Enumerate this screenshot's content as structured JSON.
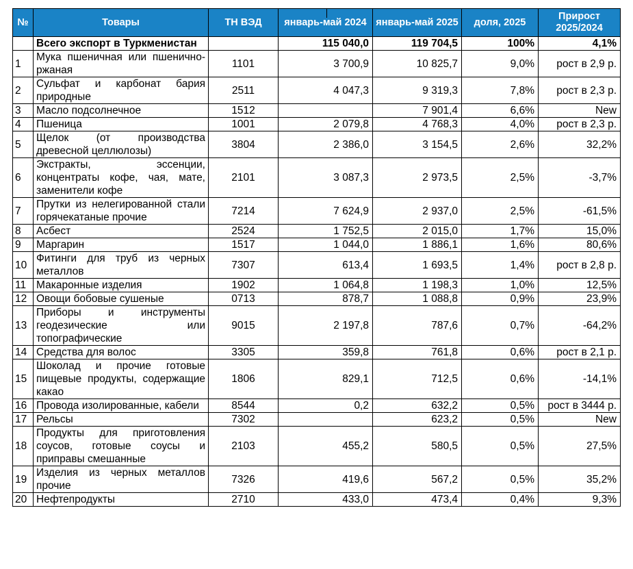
{
  "headers": {
    "num": "№",
    "goods": "Товары",
    "code": "ТН ВЭД",
    "y2024": "январь-май 2024",
    "y2025": "январь-май 2025",
    "share": "доля, 2025",
    "growth": "Прирост 2025/2024"
  },
  "total": {
    "name": "Всего экспорт в Туркменистан",
    "code": "",
    "y2024": "115 040,0",
    "y2025": "119 704,5",
    "share": "100%",
    "growth": "4,1%"
  },
  "rows": [
    {
      "num": "1",
      "name": "Мука пшеничная или пшенично-ржаная",
      "code": "1101",
      "y2024": "3 700,9",
      "y2025": "10 825,7",
      "share": "9,0%",
      "growth": "рост в 2,9 р."
    },
    {
      "num": "2",
      "name": "Сульфат и карбонат бария природные",
      "code": "2511",
      "y2024": "4 047,3",
      "y2025": "9 319,3",
      "share": "7,8%",
      "growth": "рост в 2,3 р."
    },
    {
      "num": "3",
      "name": "Масло подсолнечное",
      "code": "1512",
      "y2024": "",
      "y2025": "7 901,4",
      "share": "6,6%",
      "growth": "New"
    },
    {
      "num": "4",
      "name": "Пшеница",
      "code": "1001",
      "y2024": "2 079,8",
      "y2025": "4 768,3",
      "share": "4,0%",
      "growth": "рост в 2,3 р."
    },
    {
      "num": "5",
      "name": "Щелок (от производства древесной целлюлозы)",
      "code": "3804",
      "y2024": "2 386,0",
      "y2025": "3 154,5",
      "share": "2,6%",
      "growth": "32,2%"
    },
    {
      "num": "6",
      "name": "Экстракты, эссенции, концентраты кофе, чая, мате, заменители кофе",
      "code": "2101",
      "y2024": "3 087,3",
      "y2025": "2 973,5",
      "share": "2,5%",
      "growth": "-3,7%"
    },
    {
      "num": "7",
      "name": "Прутки из нелегированной стали горячекатаные прочие",
      "code": "7214",
      "y2024": "7 624,9",
      "y2025": "2 937,0",
      "share": "2,5%",
      "growth": "-61,5%"
    },
    {
      "num": "8",
      "name": "Асбест",
      "code": "2524",
      "y2024": "1 752,5",
      "y2025": "2 015,0",
      "share": "1,7%",
      "growth": "15,0%"
    },
    {
      "num": "9",
      "name": "Маргарин",
      "code": "1517",
      "y2024": "1 044,0",
      "y2025": "1 886,1",
      "share": "1,6%",
      "growth": "80,6%"
    },
    {
      "num": "10",
      "name": "Фитинги для труб из черных металлов",
      "code": "7307",
      "y2024": "613,4",
      "y2025": "1 693,5",
      "share": "1,4%",
      "growth": "рост в 2,8 р."
    },
    {
      "num": "11",
      "name": "Макаронные изделия",
      "code": "1902",
      "y2024": "1 064,8",
      "y2025": "1 198,3",
      "share": "1,0%",
      "growth": "12,5%"
    },
    {
      "num": "12",
      "name": "Овощи бобовые сушеные",
      "code": "0713",
      "y2024": "878,7",
      "y2025": "1 088,8",
      "share": "0,9%",
      "growth": "23,9%"
    },
    {
      "num": "13",
      "name": "Приборы и инструменты геодезические или топографические",
      "code": "9015",
      "y2024": "2 197,8",
      "y2025": "787,6",
      "share": "0,7%",
      "growth": "-64,2%"
    },
    {
      "num": "14",
      "name": "Средства для волос",
      "code": "3305",
      "y2024": "359,8",
      "y2025": "761,8",
      "share": "0,6%",
      "growth": "рост в 2,1 р."
    },
    {
      "num": "15",
      "name": "Шоколад и прочие готовые пищевые продукты, содержащие какао",
      "code": "1806",
      "y2024": "829,1",
      "y2025": "712,5",
      "share": "0,6%",
      "growth": "-14,1%"
    },
    {
      "num": "16",
      "name": "Провода изолированные, кабели",
      "code": "8544",
      "y2024": "0,2",
      "y2025": "632,2",
      "share": "0,5%",
      "growth": "рост в 3444 р."
    },
    {
      "num": "17",
      "name": "Рельсы",
      "code": "7302",
      "y2024": "",
      "y2025": "623,2",
      "share": "0,5%",
      "growth": "New"
    },
    {
      "num": "18",
      "name": "Продукты для приготовления соусов, готовые соусы и приправы смешанные",
      "code": "2103",
      "y2024": "455,2",
      "y2025": "580,5",
      "share": "0,5%",
      "growth": "27,5%"
    },
    {
      "num": "19",
      "name": "Изделия из черных металлов прочие",
      "code": "7326",
      "y2024": "419,6",
      "y2025": "567,2",
      "share": "0,5%",
      "growth": "35,2%"
    },
    {
      "num": "20",
      "name": "Нефтепродукты",
      "code": "2710",
      "y2024": "433,0",
      "y2025": "473,4",
      "share": "0,4%",
      "growth": "9,3%"
    }
  ]
}
